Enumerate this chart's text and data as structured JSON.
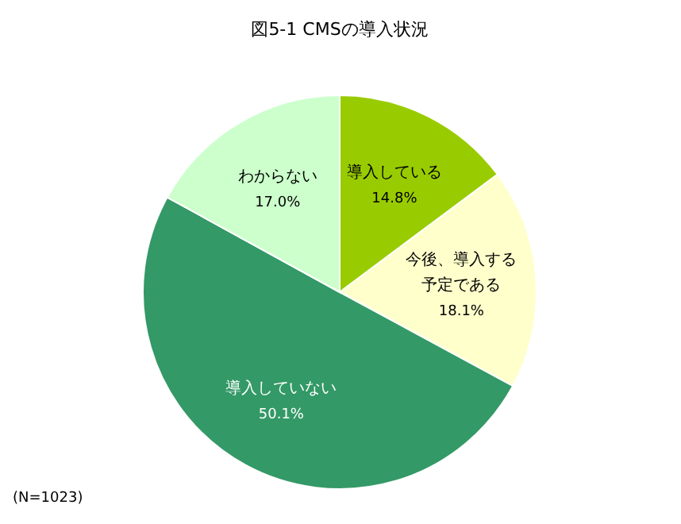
{
  "chart_data": {
    "type": "pie",
    "title": "図5-1 CMSの導入状況",
    "categories": [
      "導入している",
      "今後、導入する予定である",
      "導入していない",
      "わからない"
    ],
    "values": [
      14.8,
      18.1,
      50.1,
      17.0
    ],
    "colors": [
      "#99cc00",
      "#ffffcc",
      "#339966",
      "#ccffcc"
    ],
    "value_labels": [
      "14.8%",
      "18.1%",
      "50.1%",
      "17.0%"
    ],
    "annotations": [
      "(N=1023)"
    ]
  }
}
